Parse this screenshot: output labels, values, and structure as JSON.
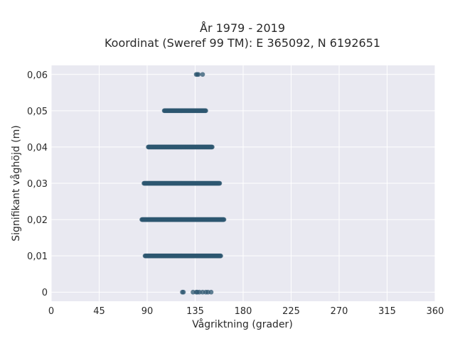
{
  "chart_data": {
    "type": "scatter",
    "title_line1": "År 1979 - 2019",
    "title_line2": "Koordinat (Sweref 99 TM): E 365092, N 6192651",
    "xlabel": "Vågriktning (grader)",
    "ylabel": "Signifikant våghöjd (m)",
    "xlim": [
      0,
      360
    ],
    "ylim": [
      -0.0025,
      0.0625
    ],
    "xticks": [
      0,
      45,
      90,
      135,
      180,
      225,
      270,
      315,
      360
    ],
    "xtick_labels": [
      "0",
      "45",
      "90",
      "135",
      "180",
      "225",
      "270",
      "315",
      "360"
    ],
    "yticks": [
      0,
      0.01,
      0.02,
      0.03,
      0.04,
      0.05,
      0.06
    ],
    "ytick_labels": [
      "0",
      "0,01",
      "0,02",
      "0,03",
      "0,04",
      "0,05",
      "0,06"
    ],
    "grid": true,
    "background": "#e9e9f1",
    "grid_color": "#ffffff",
    "point_color": "#2e5770",
    "bands": [
      {
        "y": 0.0,
        "x_min": 123,
        "x_max": 150,
        "sparse": [
          123,
          124,
          133,
          136,
          137,
          139,
          142,
          145,
          147,
          150
        ]
      },
      {
        "y": 0.01,
        "x_min": 88,
        "x_max": 159,
        "sparse": []
      },
      {
        "y": 0.02,
        "x_min": 85,
        "x_max": 162,
        "sparse": []
      },
      {
        "y": 0.03,
        "x_min": 87,
        "x_max": 158,
        "sparse": []
      },
      {
        "y": 0.04,
        "x_min": 91,
        "x_max": 151,
        "sparse": []
      },
      {
        "y": 0.05,
        "x_min": 106,
        "x_max": 145,
        "sparse": []
      },
      {
        "y": 0.06,
        "x_min": 136,
        "x_max": 142,
        "sparse": [
          136,
          137,
          138,
          142
        ]
      }
    ]
  }
}
